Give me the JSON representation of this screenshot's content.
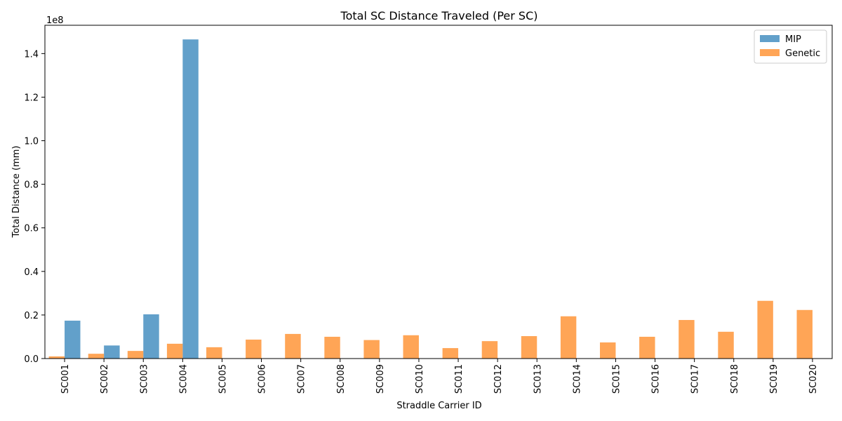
{
  "chart_data": {
    "type": "bar",
    "title": "Total SC Distance Traveled (Per SC)",
    "xlabel": "Straddle Carrier ID",
    "ylabel": "Total Distance (mm)",
    "y_multiplier_label": "1e8",
    "ylim": [
      0,
      1.53
    ],
    "yticks": [
      0.0,
      0.2,
      0.4,
      0.6,
      0.8,
      1.0,
      1.2,
      1.4
    ],
    "ytick_labels": [
      "0.0",
      "0.2",
      "0.4",
      "0.6",
      "0.8",
      "1.0",
      "1.2",
      "1.4"
    ],
    "categories": [
      "SC001",
      "SC002",
      "SC003",
      "SC004",
      "SC005",
      "SC006",
      "SC007",
      "SC008",
      "SC009",
      "SC010",
      "SC011",
      "SC012",
      "SC013",
      "SC014",
      "SC015",
      "SC016",
      "SC017",
      "SC018",
      "SC019",
      "SC020"
    ],
    "series": [
      {
        "name": "MIP",
        "color": "#1f77b4",
        "opacity": 0.7,
        "values": [
          0.174,
          0.06,
          0.203,
          1.465,
          0,
          0,
          0,
          0,
          0,
          0,
          0,
          0,
          0,
          0,
          0,
          0,
          0,
          0,
          0,
          0
        ]
      },
      {
        "name": "Genetic",
        "color": "#ff7f0e",
        "opacity": 0.7,
        "values": [
          0.01,
          0.022,
          0.035,
          0.068,
          0.052,
          0.087,
          0.113,
          0.1,
          0.085,
          0.107,
          0.048,
          0.08,
          0.103,
          0.194,
          0.074,
          0.1,
          0.177,
          0.123,
          0.265,
          0.223
        ]
      }
    ],
    "legend_position": "top-right",
    "grid": false
  }
}
